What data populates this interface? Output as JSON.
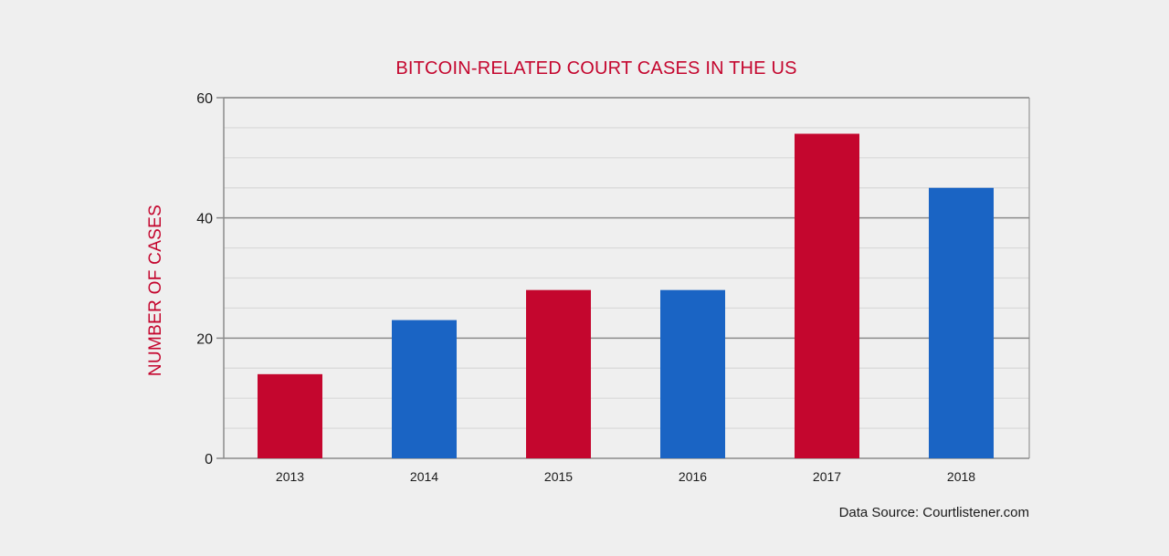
{
  "chart_data": {
    "type": "bar",
    "title": "BITCOIN-RELATED COURT CASES IN THE US",
    "xlabel": "",
    "ylabel": "NUMBER OF CASES",
    "categories": [
      "2013",
      "2014",
      "2015",
      "2016",
      "2017",
      "2018"
    ],
    "values": [
      14,
      23,
      28,
      28,
      54,
      45
    ],
    "bar_colors": [
      "#c4062e",
      "#1a64c4",
      "#c4062e",
      "#1a64c4",
      "#c4062e",
      "#1a64c4"
    ],
    "ylim": [
      0,
      60
    ],
    "yticks": [
      0,
      20,
      40,
      60
    ],
    "minor_grid_step": 5,
    "grid": true,
    "legend": "none",
    "source_note": "Data Source: Courtlistener.com"
  },
  "colors": {
    "background": "#efefef",
    "title": "#c4062e",
    "red_bar": "#c4062e",
    "blue_bar": "#1a64c4",
    "major_grid": "#8c8c8c",
    "minor_grid": "#d8d8d8",
    "frame": "#a8a8a8"
  }
}
